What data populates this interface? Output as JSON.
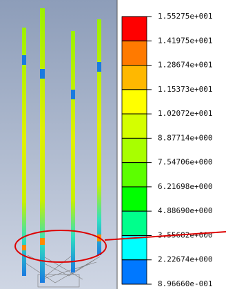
{
  "legend": {
    "labels": [
      "1.55275e+001",
      "1.41975e+001",
      "1.28674e+001",
      "1.15373e+001",
      "1.02072e+001",
      "8.87714e+000",
      "7.54706e+000",
      "6.21698e+000",
      "4.88690e+000",
      "3.55682e+000",
      "2.22674e+000",
      "8.96660e-001"
    ],
    "colors": [
      "#ff0000",
      "#ff7a00",
      "#ffb800",
      "#ffff00",
      "#d4ff00",
      "#a8ff00",
      "#5cff00",
      "#00ff00",
      "#00ff8c",
      "#00ffff",
      "#0078ff"
    ]
  }
}
